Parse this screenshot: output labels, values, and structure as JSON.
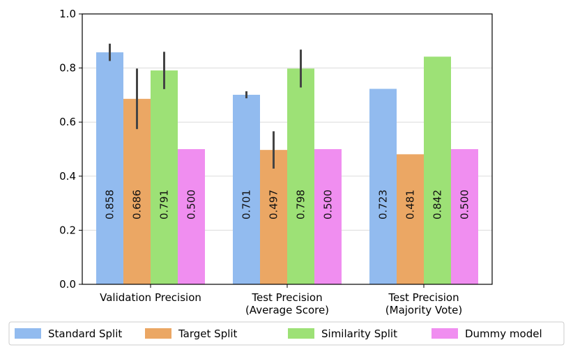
{
  "chart_data": {
    "type": "bar",
    "title": "",
    "xlabel": "",
    "ylabel": "",
    "ylim": [
      0,
      1.0
    ],
    "yticks": [
      "0.0",
      "0.2",
      "0.4",
      "0.6",
      "0.8",
      "1.0"
    ],
    "ytick_values": [
      0.0,
      0.2,
      0.4,
      0.6,
      0.8,
      1.0
    ],
    "grid": "horizontal",
    "legend_position": "bottom",
    "categories": [
      [
        "Validation Precision"
      ],
      [
        "Test Precision",
        "(Average Score)"
      ],
      [
        "Test Precision",
        "(Majority Vote)"
      ]
    ],
    "series": [
      {
        "name": "Standard Split",
        "color": "#92bbef",
        "values": [
          0.858,
          0.701,
          0.723
        ],
        "labels": [
          "0.858",
          "0.701",
          "0.723"
        ],
        "errors": [
          [
            0.826,
            0.89
          ],
          [
            0.688,
            0.714
          ],
          null
        ]
      },
      {
        "name": "Target Split",
        "color": "#eba764",
        "values": [
          0.686,
          0.497,
          0.481
        ],
        "labels": [
          "0.686",
          "0.497",
          "0.481"
        ],
        "errors": [
          [
            0.574,
            0.798
          ],
          [
            0.428,
            0.566
          ],
          null
        ]
      },
      {
        "name": "Similarity Split",
        "color": "#9de176",
        "values": [
          0.791,
          0.798,
          0.842
        ],
        "labels": [
          "0.791",
          "0.798",
          "0.842"
        ],
        "errors": [
          [
            0.722,
            0.86
          ],
          [
            0.728,
            0.868
          ],
          null
        ]
      },
      {
        "name": "Dummy model",
        "color": "#f08ef0",
        "values": [
          0.5,
          0.5,
          0.5
        ],
        "labels": [
          "0.500",
          "0.500",
          "0.500"
        ],
        "errors": [
          null,
          null,
          null
        ]
      }
    ]
  }
}
